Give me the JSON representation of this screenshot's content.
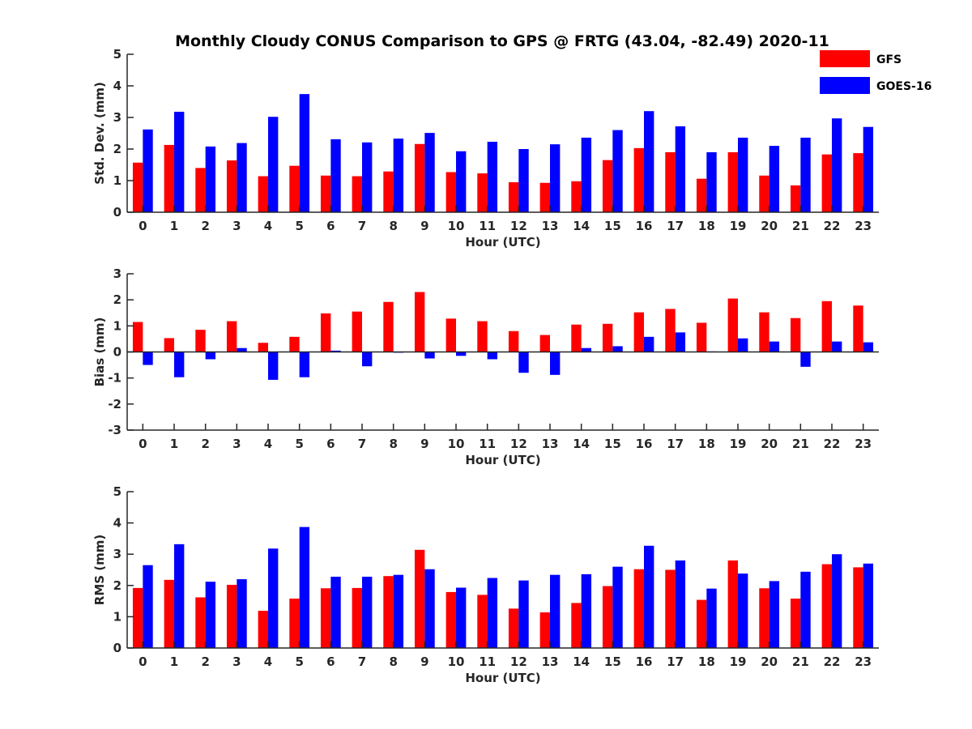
{
  "figure": {
    "title": "Monthly Cloudy CONUS Comparison to GPS @ FRTG (43.04, -82.49) 2020-11"
  },
  "legend": {
    "placement": "top-right",
    "entries": [
      {
        "name": "GFS",
        "color": "#ff0000"
      },
      {
        "name": "GOES-16",
        "color": "#0000ff"
      }
    ]
  },
  "chart_data": [
    {
      "type": "bar",
      "xlabel": "Hour (UTC)",
      "ylabel": "Std. Dev. (mm)",
      "ylim": [
        0,
        5
      ],
      "yticks": [
        0,
        1,
        2,
        3,
        4,
        5
      ],
      "categories": [
        "0",
        "1",
        "2",
        "3",
        "4",
        "5",
        "6",
        "7",
        "8",
        "9",
        "10",
        "11",
        "12",
        "13",
        "14",
        "15",
        "16",
        "17",
        "18",
        "19",
        "20",
        "21",
        "22",
        "23"
      ],
      "series": [
        {
          "name": "GFS",
          "color": "#ff0000",
          "values": [
            1.57,
            2.13,
            1.4,
            1.64,
            1.14,
            1.47,
            1.16,
            1.14,
            1.29,
            2.16,
            1.27,
            1.23,
            0.95,
            0.93,
            0.98,
            1.65,
            2.03,
            1.9,
            1.06,
            1.9,
            1.16,
            0.85,
            1.83,
            1.87
          ]
        },
        {
          "name": "GOES-16",
          "color": "#0000ff",
          "values": [
            2.62,
            3.18,
            2.08,
            2.19,
            3.02,
            3.74,
            2.31,
            2.21,
            2.33,
            2.51,
            1.93,
            2.23,
            2.0,
            2.15,
            2.36,
            2.6,
            3.2,
            2.72,
            1.9,
            2.36,
            2.1,
            2.36,
            2.97,
            2.7
          ]
        }
      ]
    },
    {
      "type": "bar",
      "xlabel": "Hour (UTC)",
      "ylabel": "Bias (mm)",
      "ylim": [
        -3,
        3
      ],
      "yticks": [
        -3,
        -2,
        -1,
        0,
        1,
        2,
        3
      ],
      "categories": [
        "0",
        "1",
        "2",
        "3",
        "4",
        "5",
        "6",
        "7",
        "8",
        "9",
        "10",
        "11",
        "12",
        "13",
        "14",
        "15",
        "16",
        "17",
        "18",
        "19",
        "20",
        "21",
        "22",
        "23"
      ],
      "series": [
        {
          "name": "GFS",
          "color": "#ff0000",
          "values": [
            1.15,
            0.53,
            0.85,
            1.18,
            0.35,
            0.58,
            1.48,
            1.55,
            1.92,
            2.3,
            1.28,
            1.18,
            0.8,
            0.65,
            1.05,
            1.08,
            1.52,
            1.65,
            1.12,
            2.05,
            1.52,
            1.3,
            1.95,
            1.78
          ]
        },
        {
          "name": "GOES-16",
          "color": "#0000ff",
          "values": [
            -0.5,
            -0.97,
            -0.28,
            0.15,
            -1.07,
            -0.97,
            0.05,
            -0.55,
            -0.03,
            -0.25,
            -0.15,
            -0.28,
            -0.8,
            -0.88,
            0.15,
            0.22,
            0.58,
            0.75,
            0.02,
            0.52,
            0.4,
            -0.57,
            0.4,
            0.37
          ]
        }
      ]
    },
    {
      "type": "bar",
      "xlabel": "Hour (UTC)",
      "ylabel": "RMS (mm)",
      "ylim": [
        0,
        5
      ],
      "yticks": [
        0,
        1,
        2,
        3,
        4,
        5
      ],
      "categories": [
        "0",
        "1",
        "2",
        "3",
        "4",
        "5",
        "6",
        "7",
        "8",
        "9",
        "10",
        "11",
        "12",
        "13",
        "14",
        "15",
        "16",
        "17",
        "18",
        "19",
        "20",
        "21",
        "22",
        "23"
      ],
      "series": [
        {
          "name": "GFS",
          "color": "#ff0000",
          "values": [
            1.92,
            2.18,
            1.62,
            2.02,
            1.19,
            1.58,
            1.91,
            1.92,
            2.3,
            3.14,
            1.79,
            1.7,
            1.26,
            1.14,
            1.44,
            1.98,
            2.52,
            2.5,
            1.54,
            2.8,
            1.91,
            1.58,
            2.68,
            2.58
          ]
        },
        {
          "name": "GOES-16",
          "color": "#0000ff",
          "values": [
            2.65,
            3.32,
            2.12,
            2.2,
            3.18,
            3.87,
            2.28,
            2.28,
            2.34,
            2.52,
            1.93,
            2.24,
            2.16,
            2.34,
            2.36,
            2.6,
            3.27,
            2.8,
            1.9,
            2.38,
            2.14,
            2.44,
            3.0,
            2.7
          ]
        }
      ]
    }
  ]
}
